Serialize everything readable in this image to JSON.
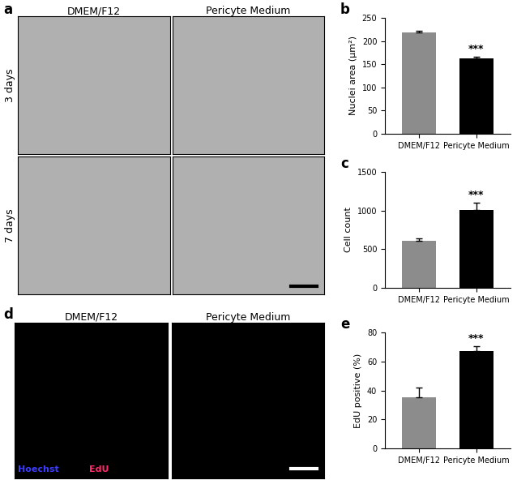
{
  "chart_data": [
    {
      "type": "bar",
      "title": "b",
      "y_label": "Nuclei area (µm²)",
      "categories": [
        "DMEM/F12",
        "Pericyte Medium"
      ],
      "values": [
        218,
        163
      ],
      "errors": [
        4,
        3
      ],
      "colors": [
        "#8c8c8c",
        "#000000"
      ],
      "ylim": [
        0,
        250
      ],
      "yticks": [
        0,
        50,
        100,
        150,
        200,
        250
      ],
      "annotations": [
        {
          "category": "Pericyte Medium",
          "text": "***"
        }
      ]
    },
    {
      "type": "bar",
      "title": "c",
      "y_label": "Cell count",
      "categories": [
        "DMEM/F12",
        "Pericyte Medium"
      ],
      "values": [
        610,
        1005
      ],
      "errors": [
        35,
        95
      ],
      "colors": [
        "#8c8c8c",
        "#000000"
      ],
      "ylim": [
        0,
        1500
      ],
      "yticks": [
        0,
        500,
        1000,
        1500
      ],
      "annotations": [
        {
          "category": "Pericyte Medium",
          "text": "***"
        }
      ]
    },
    {
      "type": "bar",
      "title": "e",
      "y_label": "EdU positive (%)",
      "categories": [
        "DMEM/F12",
        "Pericyte Medium"
      ],
      "values": [
        35,
        67
      ],
      "errors": [
        7,
        3.5
      ],
      "colors": [
        "#8c8c8c",
        "#000000"
      ],
      "ylim": [
        0,
        80
      ],
      "yticks": [
        0,
        20,
        40,
        60,
        80
      ],
      "annotations": [
        {
          "category": "Pericyte Medium",
          "text": "***"
        }
      ]
    }
  ],
  "image_panels": [
    {
      "title": "a",
      "columns": [
        "DMEM/F12",
        "Pericyte Medium"
      ],
      "rows": [
        "3 days",
        "7 days"
      ]
    },
    {
      "title": "d",
      "columns": [
        "DMEM/F12",
        "Pericyte Medium"
      ],
      "legend": [
        {
          "text": "Hoechst",
          "color": "#3c3cff"
        },
        {
          "text": "EdU",
          "color": "#ff2a6a"
        }
      ]
    }
  ]
}
